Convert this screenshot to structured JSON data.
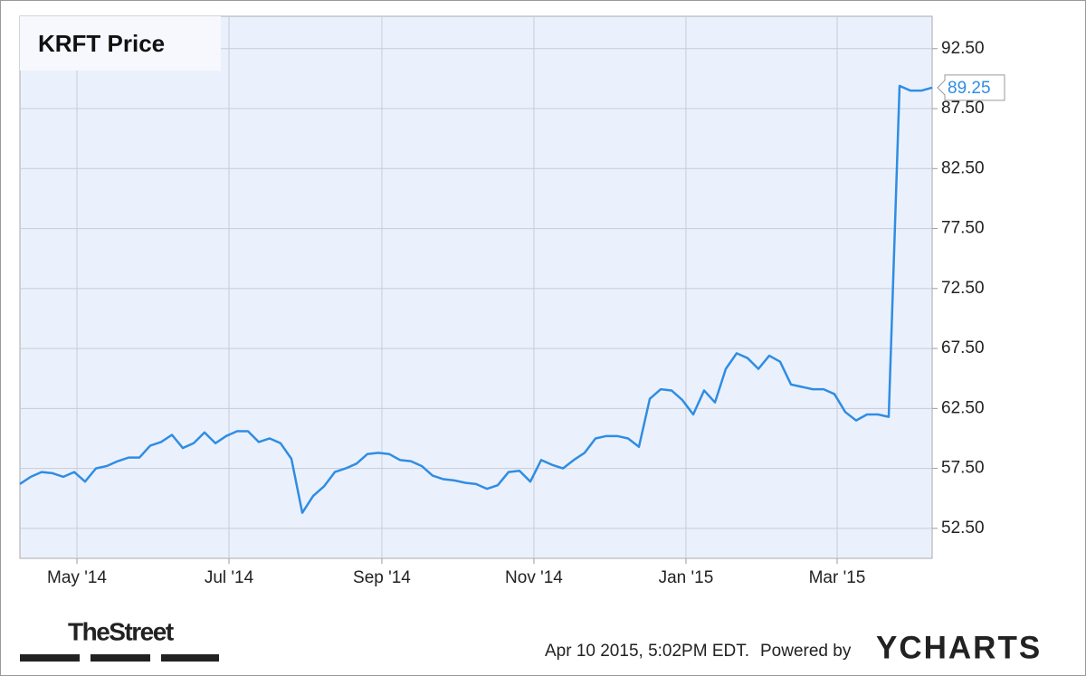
{
  "chart_data": {
    "type": "line",
    "title": "KRFT Price",
    "series": [
      {
        "name": "KRFT Price",
        "color": "#2f8de4",
        "values": [
          56.2,
          56.8,
          57.2,
          57.1,
          56.8,
          57.2,
          56.4,
          57.5,
          57.7,
          58.1,
          58.4,
          58.4,
          59.4,
          59.7,
          60.3,
          59.2,
          59.6,
          60.5,
          59.6,
          60.2,
          60.6,
          60.6,
          59.7,
          60.0,
          59.6,
          58.3,
          53.8,
          55.2,
          56.0,
          57.2,
          57.5,
          57.9,
          58.7,
          58.8,
          58.7,
          58.2,
          58.1,
          57.7,
          56.9,
          56.6,
          56.5,
          56.3,
          56.2,
          55.8,
          56.1,
          57.2,
          57.3,
          56.4,
          58.2,
          57.8,
          57.5,
          58.2,
          58.8,
          60.0,
          60.2,
          60.2,
          60.0,
          59.3,
          63.3,
          64.1,
          64.0,
          63.2,
          62.0,
          64.0,
          63.0,
          65.8,
          67.1,
          66.7,
          65.8,
          66.9,
          66.4,
          64.5,
          64.3,
          64.1,
          64.1,
          63.7,
          62.2,
          61.5,
          62.0,
          62.0,
          61.8,
          89.4,
          89.0,
          89.0,
          89.25
        ]
      }
    ],
    "xlim": [
      0,
      84
    ],
    "xticks": [
      {
        "value": 5.25,
        "label": "May '14"
      },
      {
        "value": 19.25,
        "label": "Jul '14"
      },
      {
        "value": 33.33,
        "label": "Sep '14"
      },
      {
        "value": 47.33,
        "label": "Nov '14"
      },
      {
        "value": 61.33,
        "label": "Jan '15"
      },
      {
        "value": 75.25,
        "label": "Mar '15"
      }
    ],
    "ylim": [
      50,
      95.2
    ],
    "yticks": [
      {
        "value": 52.5,
        "label": "52.50"
      },
      {
        "value": 57.5,
        "label": "57.50"
      },
      {
        "value": 62.5,
        "label": "62.50"
      },
      {
        "value": 67.5,
        "label": "67.50"
      },
      {
        "value": 72.5,
        "label": "72.50"
      },
      {
        "value": 77.5,
        "label": "77.50"
      },
      {
        "value": 82.5,
        "label": "82.50"
      },
      {
        "value": 87.5,
        "label": "87.50"
      },
      {
        "value": 92.5,
        "label": "92.50"
      }
    ],
    "grid": true,
    "footer": {
      "brand": "TheStreet",
      "timestamp": "Apr 10 2015, 5:02PM EDT.",
      "powered": "Powered by",
      "logo": "YCHARTS"
    }
  }
}
